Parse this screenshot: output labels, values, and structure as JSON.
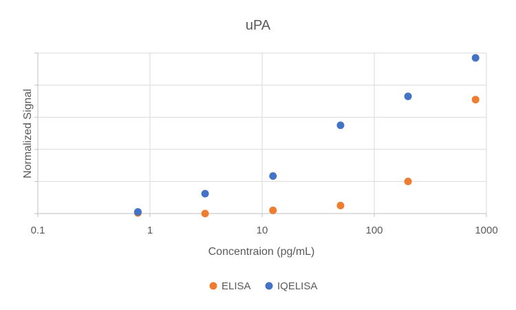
{
  "chart_data": {
    "type": "scatter",
    "title": "uPA",
    "xlabel": "Concentraion (pg/mL)",
    "ylabel": "Normalized Signal",
    "x_scale": "log",
    "xlim": [
      0.1,
      1000
    ],
    "ylim": [
      0,
      5
    ],
    "x_ticks": [
      "0.1",
      "1",
      "10",
      "100",
      "1000"
    ],
    "grid": true,
    "legend_position": "bottom",
    "series": [
      {
        "name": "ELISA",
        "color": "#ED7D31",
        "points": [
          {
            "x": 0.78,
            "y": 0.02
          },
          {
            "x": 3.1,
            "y": 0.0
          },
          {
            "x": 12.5,
            "y": 0.1
          },
          {
            "x": 50,
            "y": 0.25
          },
          {
            "x": 200,
            "y": 1.0
          },
          {
            "x": 800,
            "y": 3.55
          }
        ]
      },
      {
        "name": "IQELISA",
        "color": "#4472C4",
        "points": [
          {
            "x": 0.78,
            "y": 0.05
          },
          {
            "x": 3.1,
            "y": 0.62
          },
          {
            "x": 12.5,
            "y": 1.17
          },
          {
            "x": 50,
            "y": 2.75
          },
          {
            "x": 200,
            "y": 3.65
          },
          {
            "x": 800,
            "y": 4.85
          }
        ]
      }
    ]
  }
}
